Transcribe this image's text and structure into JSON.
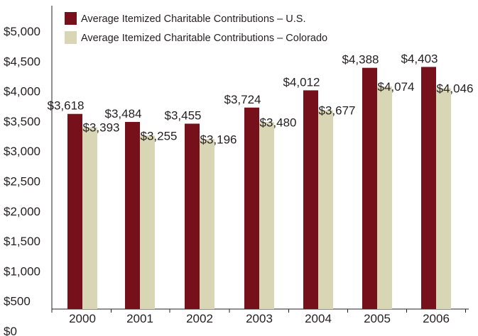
{
  "chart_data": {
    "type": "bar",
    "title": "",
    "xlabel": "",
    "ylabel": "",
    "categories": [
      "2000",
      "2001",
      "2002",
      "2003",
      "2004",
      "2005",
      "2006"
    ],
    "series": [
      {
        "name": "Average Itemized Charitable Contributions – U.S.",
        "color": "#76101a",
        "values": [
          3618,
          3484,
          3455,
          3724,
          4012,
          4388,
          4403
        ],
        "labels": [
          "$3,618",
          "$3,484",
          "$3,455",
          "$3,724",
          "$4,012",
          "$4,388",
          "$4,403"
        ]
      },
      {
        "name": "Average Itemized Charitable Contributions – Colorado",
        "color": "#d9d6b5",
        "values": [
          3393,
          3255,
          3196,
          3480,
          3677,
          4074,
          4046
        ],
        "labels": [
          "$3,393",
          "$3,255",
          "$3,196",
          "$3,480",
          "$3,677",
          "$4,074",
          "$4,046"
        ]
      }
    ],
    "y_ticks": [
      0,
      500,
      1000,
      1500,
      2000,
      2500,
      3000,
      3500,
      4000,
      4500,
      5000
    ],
    "y_tick_labels": [
      "$0",
      "$500",
      "$1,000",
      "$1,500",
      "$2,000",
      "$2,500",
      "$3,000",
      "$3,500",
      "$4,000",
      "$4,500",
      "$5,000"
    ],
    "ylim": [
      0,
      5000
    ],
    "grid": false,
    "legend_position": "top-left"
  }
}
